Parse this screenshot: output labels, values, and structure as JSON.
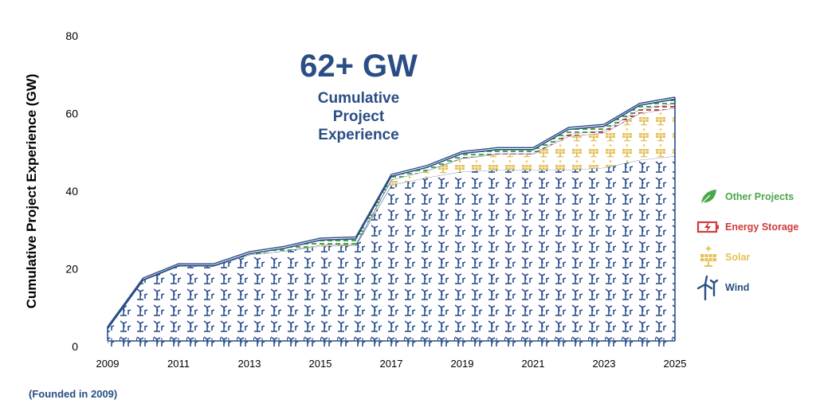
{
  "chart_data": {
    "type": "area",
    "title": "62+ GW",
    "subtitle": "Cumulative Project Experience",
    "xlabel": "",
    "ylabel": "Cumulative Project Experience (GW)",
    "x": [
      2009,
      2010,
      2011,
      2012,
      2013,
      2014,
      2015,
      2016,
      2017,
      2018,
      2019,
      2020,
      2021,
      2022,
      2023,
      2024,
      2025
    ],
    "x_tick_labels": [
      "2009",
      "2011",
      "2013",
      "2015",
      "2017",
      "2019",
      "2021",
      "2023",
      "2025"
    ],
    "y_tick_labels": [
      "0",
      "20",
      "40",
      "60",
      "80"
    ],
    "ylim": [
      0,
      80
    ],
    "xlim": [
      2009,
      2025
    ],
    "grid": false,
    "stacked": true,
    "legend_position": "right",
    "series": [
      {
        "name": "Wind",
        "color": "#2a4d85",
        "values": [
          4.5,
          17,
          20.7,
          20.7,
          23.6,
          24.6,
          25.8,
          26,
          41.5,
          43.5,
          45,
          45.5,
          45.5,
          45.5,
          46,
          48,
          49
        ]
      },
      {
        "name": "Solar",
        "color": "#e6c158",
        "values": [
          0,
          0,
          0,
          0,
          0,
          0,
          0.3,
          0.3,
          1.4,
          1.7,
          3.4,
          4,
          4,
          8.6,
          9,
          12,
          12.4
        ]
      },
      {
        "name": "Energy Storage",
        "color": "#d03a3a",
        "values": [
          0,
          0,
          0,
          0,
          0,
          0,
          0,
          0,
          0,
          0,
          0.2,
          0.2,
          0.2,
          0.6,
          0.6,
          1,
          1.2
        ]
      },
      {
        "name": "Other Projects",
        "color": "#4aa64a",
        "values": [
          0,
          0,
          0,
          0,
          0.2,
          0.6,
          1.2,
          1.3,
          0.8,
          0.8,
          1,
          0.9,
          0.9,
          1.1,
          1,
          1,
          1
        ]
      }
    ],
    "annotations": [
      "62+ GW",
      "Cumulative Project Experience",
      "(Founded in 2009)"
    ]
  },
  "callout": {
    "headline": "62+ GW",
    "line1": "Cumulative",
    "line2": "Project",
    "line3": "Experience"
  },
  "legend": [
    {
      "label": "Other Projects",
      "icon": "leaf-icon",
      "color": "#4aa64a"
    },
    {
      "label": "Energy Storage",
      "icon": "battery-icon",
      "color": "#d03a3a"
    },
    {
      "label": "Solar",
      "icon": "solar-panel-icon",
      "color": "#e6c158"
    },
    {
      "label": "Wind",
      "icon": "wind-turbine-icon",
      "color": "#2a4d85"
    }
  ],
  "footnote": "(Founded in 2009)"
}
